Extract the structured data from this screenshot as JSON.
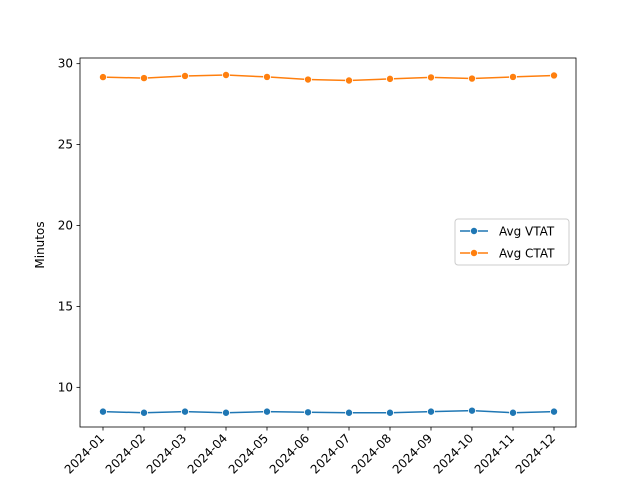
{
  "chart_data": {
    "type": "line",
    "title": "",
    "xlabel": "",
    "ylabel": "Minutos",
    "x": [
      "2024-01",
      "2024-02",
      "2024-03",
      "2024-04",
      "2024-05",
      "2024-06",
      "2024-07",
      "2024-08",
      "2024-09",
      "2024-10",
      "2024-11",
      "2024-12"
    ],
    "ylim": [
      7.55,
      30.35
    ],
    "yticks": [
      10,
      15,
      20,
      25,
      30
    ],
    "grid": false,
    "legend_position": "center-right",
    "series": [
      {
        "name": "Avg VTAT",
        "color": "#1f77b4",
        "marker": "circle",
        "values": [
          8.5,
          8.43,
          8.5,
          8.43,
          8.5,
          8.46,
          8.43,
          8.43,
          8.5,
          8.56,
          8.43,
          8.5
        ]
      },
      {
        "name": "Avg CTAT",
        "color": "#ff7f0e",
        "marker": "circle",
        "values": [
          29.17,
          29.11,
          29.24,
          29.3,
          29.18,
          29.02,
          28.96,
          29.06,
          29.15,
          29.08,
          29.18,
          29.27
        ]
      }
    ]
  }
}
